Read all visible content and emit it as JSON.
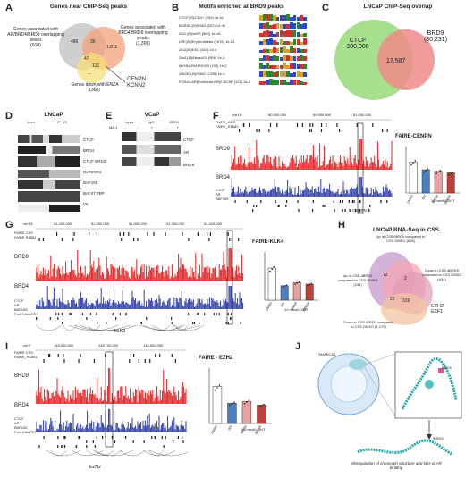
{
  "panels": {
    "A": {
      "letter": "A",
      "title": "Genes near ChIP-Seq peaks",
      "set1": {
        "label": "Genes associated with AR/BRD4/BRD9 overlapping peaks",
        "count": "(910)"
      },
      "set2": {
        "label": "Genes associated with BRD4/BRD9 overlapping peaks",
        "count": "(3,306)"
      },
      "set3": {
        "label": "Genes down with ENZA",
        "count": "(368)"
      },
      "regions": [
        "486",
        "36",
        "1,811",
        "47",
        "131",
        "..."
      ],
      "highlight_genes": [
        "CENPN",
        "KCNN2"
      ],
      "colors": {
        "set1": "#bfbfbf",
        "set2": "#f4a27a",
        "set3": "#f7e07a"
      }
    },
    "B": {
      "letter": "B",
      "title": "Motifs enriched at BRD9 peaks",
      "motifs": [
        "CTCF(Zf)/CD4+ (762) 1e-61",
        "BORIS (Zf)/K562 (621) 1e-46",
        "Zic3 (Zf)/mES (860) 1e-16",
        "LRF(Zf)/Erythroblasts (1576) 1e-10",
        "Zic2(Zf)/ESC (411) 1e-4",
        "Zac1(Zf)/Neuro2A (906) 1e-3",
        "MYNN(Zf)/HEK293 (193) 1e-2",
        "ZNf263(Zf)/K562 (1335) 1e-2",
        "FOXA1:AR(Forkhead,NR)/LNCAP (121) 1e-2"
      ]
    },
    "C": {
      "letter": "C",
      "title": "LNCaP ChIP-Seq overlap",
      "left": {
        "name": "CTCF",
        "count": "300,000",
        "color": "#a6e08c"
      },
      "right": {
        "name": "BRD9",
        "count": "(30,231)",
        "color": "#f08a8a"
      },
      "overlap": "17,587"
    },
    "D": {
      "letter": "D",
      "title": "LNCaP",
      "group_labels": [
        "Input",
        "IP: V5"
      ],
      "markers": [
        "CTCF",
        "BRD4",
        "CTCF BRD2",
        "GLTSCR1",
        "BAF155",
        "BAF47 TBP",
        "V5"
      ]
    },
    "E": {
      "letter": "E",
      "title": "VCaP",
      "lane_labels": [
        "Input",
        "IgG",
        "BRD9"
      ],
      "row_label": "MZ-1",
      "signs": [
        "-",
        "-",
        "+",
        "-",
        "+"
      ],
      "markers": [
        "CTCF",
        "AR",
        "BRD9"
      ]
    },
    "F": {
      "letter": "F",
      "chrom": "chr16:",
      "ticks": [
        "80,900,000",
        "80,950,000",
        "81,000,000"
      ],
      "tracks": [
        "FAIRE_CSS",
        "FAIRE_R1881",
        "BRD9",
        "BRD4",
        "CTCF",
        "AR",
        "BAF155"
      ],
      "gene": "CENPN",
      "bar_title": "FAIRE-CENPN",
      "ylabel": "Fold increase in FAIRE compared to control",
      "treatment": "10 nmol/L DHT",
      "categories": [
        "DMSO",
        "dCt",
        "iBRD9",
        "dBRD9"
      ]
    },
    "G": {
      "letter": "G",
      "chrom": "chr19:",
      "ticks": [
        "51,200,000",
        "51,250,000",
        "51,300,000",
        "51,350,000",
        "51,400,000"
      ],
      "tracks": [
        "FAIRE CSS",
        "FAIRE R1881",
        "BRD9",
        "BRD4",
        "CTCF",
        "AR",
        "BAF155",
        "PolII ChIa-PET"
      ],
      "gene": "KLK3",
      "bar_title": "FAIRE-KLK4",
      "ylabel": "Fold change in FAIRE compared to DMSO control",
      "treatment": "10 nmol/L DHT",
      "categories": [
        "DMSO",
        "dCt",
        "iBRD9",
        "dBRD9"
      ],
      "sig": [
        "*",
        "ns",
        "ns"
      ]
    },
    "H": {
      "letter": "H",
      "title": "LNCaP RNA-Seq in CSS",
      "sets": [
        {
          "label": "Up in CSS iBRD9 compared to CSS DMSO",
          "count": "(616)",
          "color": "#c9a0d0"
        },
        {
          "label": "Up in CSS dBRD9 compared to CSS DMSO",
          "count": "(231)",
          "color": "#f4a6b0"
        },
        {
          "label": "Down in CSS dBRD9 compared to CSS DMSO",
          "count": "(434)",
          "color": "#e39bb8"
        },
        {
          "label": "Down in CSS iBRD9 compared to CSS DMSO",
          "count": "(1,179)",
          "color": "#f2c4a0"
        }
      ],
      "regions": [
        "72",
        "2",
        "22",
        "319"
      ],
      "genes": [
        "EZH2",
        "E2F1"
      ]
    },
    "I": {
      "letter": "I",
      "chrom": "chr7:",
      "ticks": [
        "148,500,000",
        "148,700,000",
        "148,900,000"
      ],
      "tracks": [
        "FAIRE CSS",
        "FAIRE_R1881",
        "BRD9",
        "BRD4",
        "CTCF",
        "AR",
        "BAF155",
        "PolII ChiaPET"
      ],
      "gene": "EZH2",
      "bar_title": "FAIRE - EZH2",
      "ylabel": "Fold change in FAIRE compared to DMSO control",
      "treatment": "10 nmol/L DHT",
      "categories": [
        "DMSO",
        "dCt",
        "iBRD9",
        "dBRD9"
      ],
      "sig": [
        "*",
        "**",
        "ns"
      ]
    },
    "J": {
      "letter": "J",
      "labels": [
        "SMARCA4",
        "iBRD9",
        "BRD9"
      ],
      "caption": "Misregulation of chromatin structure and loss of AR binding"
    }
  },
  "chart_data": [
    {
      "panel": "F",
      "type": "bar",
      "title": "FAIRE-CENPN",
      "categories": [
        "DMSO",
        "dCt",
        "iBRD9",
        "dBRD9"
      ],
      "values": [
        1.0,
        0.75,
        0.7,
        0.65
      ],
      "ylim": [
        0,
        1.5
      ],
      "colors": [
        "#ffffff",
        "#4a7fc1",
        "#e8a0a0",
        "#c2413a"
      ]
    },
    {
      "panel": "G",
      "type": "bar",
      "title": "FAIRE-KLK4",
      "categories": [
        "DMSO",
        "dCt",
        "iBRD9",
        "dBRD9"
      ],
      "values": [
        1.0,
        0.45,
        0.55,
        0.5
      ],
      "ylim": [
        0,
        1.5
      ],
      "colors": [
        "#ffffff",
        "#4a7fc1",
        "#e8a0a0",
        "#c2413a"
      ]
    },
    {
      "panel": "I",
      "type": "bar",
      "title": "FAIRE - EZH2",
      "categories": [
        "DMSO",
        "dCt",
        "iBRD9",
        "dBRD9"
      ],
      "values": [
        1.0,
        0.55,
        0.6,
        0.5
      ],
      "ylim": [
        0,
        1.5
      ],
      "colors": [
        "#ffffff",
        "#4a7fc1",
        "#e8a0a0",
        "#c2413a"
      ]
    }
  ]
}
